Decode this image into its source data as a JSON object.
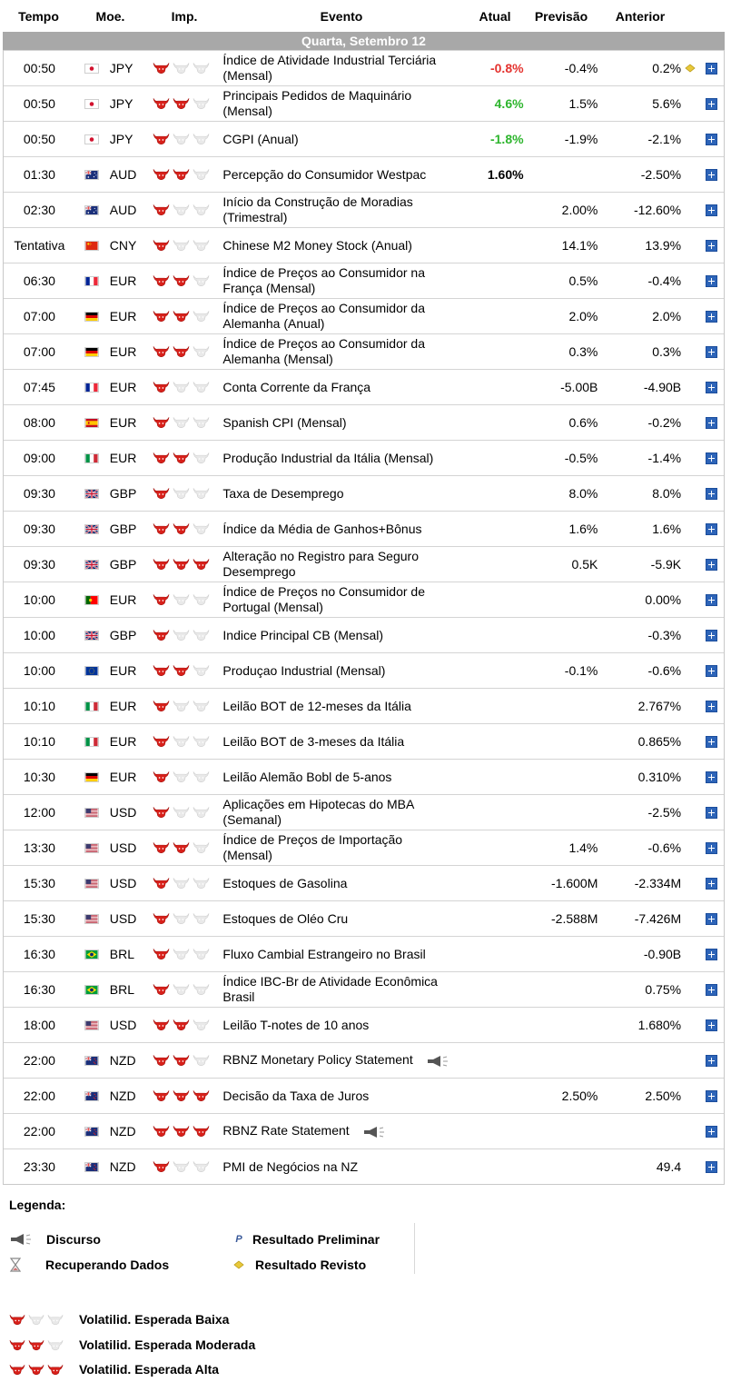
{
  "header": {
    "time": "Tempo",
    "currency": "Moe.",
    "importance": "Imp.",
    "event": "Evento",
    "actual": "Atual",
    "forecast": "Previsão",
    "previous": "Anterior"
  },
  "day_label": "Quarta, Setembro 12",
  "colors": {
    "bull_on": "#d8201a",
    "bull_off": "#e9e9e9",
    "negative": "#e4332f",
    "positive": "#2eb52e"
  },
  "events": [
    {
      "time": "00:50",
      "flag": "jp",
      "currency": "JPY",
      "imp": 1,
      "event": [
        "Índice de Atividade Industrial Terciária",
        "(Mensal)"
      ],
      "actual": "-0.8%",
      "actual_class": "neg",
      "forecast": "-0.4%",
      "previous": "0.2%",
      "revised": true,
      "speech": false
    },
    {
      "time": "00:50",
      "flag": "jp",
      "currency": "JPY",
      "imp": 2,
      "event": [
        "Principais Pedidos de Maquinário",
        "(Mensal)"
      ],
      "actual": "4.6%",
      "actual_class": "pos",
      "forecast": "1.5%",
      "previous": "5.6%",
      "revised": false,
      "speech": false
    },
    {
      "time": "00:50",
      "flag": "jp",
      "currency": "JPY",
      "imp": 1,
      "event": [
        "CGPI (Anual)"
      ],
      "actual": "-1.8%",
      "actual_class": "pos",
      "forecast": "-1.9%",
      "previous": "-2.1%",
      "revised": false,
      "speech": false
    },
    {
      "time": "01:30",
      "flag": "au",
      "currency": "AUD",
      "imp": 2,
      "event": [
        "Percepção do Consumidor Westpac"
      ],
      "actual": "1.60%",
      "actual_class": "neu",
      "forecast": "",
      "previous": "-2.50%",
      "revised": false,
      "speech": false
    },
    {
      "time": "02:30",
      "flag": "au",
      "currency": "AUD",
      "imp": 1,
      "event": [
        "Início da Construção de Moradias",
        "(Trimestral)"
      ],
      "actual": "",
      "actual_class": "",
      "forecast": "2.00%",
      "previous": "-12.60%",
      "revised": false,
      "speech": false
    },
    {
      "time": "Tentativa",
      "flag": "cn",
      "currency": "CNY",
      "imp": 1,
      "event": [
        "Chinese M2 Money Stock (Anual)"
      ],
      "actual": "",
      "actual_class": "",
      "forecast": "14.1%",
      "previous": "13.9%",
      "revised": false,
      "speech": false
    },
    {
      "time": "06:30",
      "flag": "fr",
      "currency": "EUR",
      "imp": 2,
      "event": [
        "Índice de Preços ao Consumidor na",
        "França (Mensal)"
      ],
      "actual": "",
      "actual_class": "",
      "forecast": "0.5%",
      "previous": "-0.4%",
      "revised": false,
      "speech": false
    },
    {
      "time": "07:00",
      "flag": "de",
      "currency": "EUR",
      "imp": 2,
      "event": [
        "Índice de Preços ao Consumidor da",
        "Alemanha (Anual)"
      ],
      "actual": "",
      "actual_class": "",
      "forecast": "2.0%",
      "previous": "2.0%",
      "revised": false,
      "speech": false
    },
    {
      "time": "07:00",
      "flag": "de",
      "currency": "EUR",
      "imp": 2,
      "event": [
        "Índice de Preços ao Consumidor da",
        "Alemanha (Mensal)"
      ],
      "actual": "",
      "actual_class": "",
      "forecast": "0.3%",
      "previous": "0.3%",
      "revised": false,
      "speech": false
    },
    {
      "time": "07:45",
      "flag": "fr",
      "currency": "EUR",
      "imp": 1,
      "event": [
        "Conta Corrente da França"
      ],
      "actual": "",
      "actual_class": "",
      "forecast": "-5.00B",
      "previous": "-4.90B",
      "revised": false,
      "speech": false
    },
    {
      "time": "08:00",
      "flag": "es",
      "currency": "EUR",
      "imp": 1,
      "event": [
        "Spanish CPI (Mensal)"
      ],
      "actual": "",
      "actual_class": "",
      "forecast": "0.6%",
      "previous": "-0.2%",
      "revised": false,
      "speech": false
    },
    {
      "time": "09:00",
      "flag": "it",
      "currency": "EUR",
      "imp": 2,
      "event": [
        "Produção Industrial da Itália (Mensal)"
      ],
      "actual": "",
      "actual_class": "",
      "forecast": "-0.5%",
      "previous": "-1.4%",
      "revised": false,
      "speech": false
    },
    {
      "time": "09:30",
      "flag": "gb",
      "currency": "GBP",
      "imp": 1,
      "event": [
        "Taxa de Desemprego"
      ],
      "actual": "",
      "actual_class": "",
      "forecast": "8.0%",
      "previous": "8.0%",
      "revised": false,
      "speech": false
    },
    {
      "time": "09:30",
      "flag": "gb",
      "currency": "GBP",
      "imp": 2,
      "event": [
        "Índice da Média de Ganhos+Bônus"
      ],
      "actual": "",
      "actual_class": "",
      "forecast": "1.6%",
      "previous": "1.6%",
      "revised": false,
      "speech": false
    },
    {
      "time": "09:30",
      "flag": "gb",
      "currency": "GBP",
      "imp": 3,
      "event": [
        "Alteração no Registro para Seguro",
        "Desemprego"
      ],
      "actual": "",
      "actual_class": "",
      "forecast": "0.5K",
      "previous": "-5.9K",
      "revised": false,
      "speech": false
    },
    {
      "time": "10:00",
      "flag": "pt",
      "currency": "EUR",
      "imp": 1,
      "event": [
        "Índice de Preços no Consumidor de",
        "Portugal (Mensal)"
      ],
      "actual": "",
      "actual_class": "",
      "forecast": "",
      "previous": "0.00%",
      "revised": false,
      "speech": false
    },
    {
      "time": "10:00",
      "flag": "gb",
      "currency": "GBP",
      "imp": 1,
      "event": [
        "Indice Principal CB (Mensal)"
      ],
      "actual": "",
      "actual_class": "",
      "forecast": "",
      "previous": "-0.3%",
      "revised": false,
      "speech": false
    },
    {
      "time": "10:00",
      "flag": "eu",
      "currency": "EUR",
      "imp": 2,
      "event": [
        "Produçao Industrial (Mensal)"
      ],
      "actual": "",
      "actual_class": "",
      "forecast": "-0.1%",
      "previous": "-0.6%",
      "revised": false,
      "speech": false
    },
    {
      "time": "10:10",
      "flag": "it",
      "currency": "EUR",
      "imp": 1,
      "event": [
        "Leilão BOT de 12-meses da Itália"
      ],
      "actual": "",
      "actual_class": "",
      "forecast": "",
      "previous": "2.767%",
      "revised": false,
      "speech": false
    },
    {
      "time": "10:10",
      "flag": "it",
      "currency": "EUR",
      "imp": 1,
      "event": [
        "Leilão BOT de 3-meses da Itália"
      ],
      "actual": "",
      "actual_class": "",
      "forecast": "",
      "previous": "0.865%",
      "revised": false,
      "speech": false
    },
    {
      "time": "10:30",
      "flag": "de",
      "currency": "EUR",
      "imp": 1,
      "event": [
        "Leilão Alemão Bobl de 5-anos"
      ],
      "actual": "",
      "actual_class": "",
      "forecast": "",
      "previous": "0.310%",
      "revised": false,
      "speech": false
    },
    {
      "time": "12:00",
      "flag": "us",
      "currency": "USD",
      "imp": 1,
      "event": [
        "Aplicações em Hipotecas do MBA",
        "(Semanal)"
      ],
      "actual": "",
      "actual_class": "",
      "forecast": "",
      "previous": "-2.5%",
      "revised": false,
      "speech": false
    },
    {
      "time": "13:30",
      "flag": "us",
      "currency": "USD",
      "imp": 2,
      "event": [
        "Índice de Preços de Importação",
        "(Mensal)"
      ],
      "actual": "",
      "actual_class": "",
      "forecast": "1.4%",
      "previous": "-0.6%",
      "revised": false,
      "speech": false
    },
    {
      "time": "15:30",
      "flag": "us",
      "currency": "USD",
      "imp": 1,
      "event": [
        "Estoques de Gasolina"
      ],
      "actual": "",
      "actual_class": "",
      "forecast": "-1.600M",
      "previous": "-2.334M",
      "revised": false,
      "speech": false
    },
    {
      "time": "15:30",
      "flag": "us",
      "currency": "USD",
      "imp": 1,
      "event": [
        "Estoques de Oléo Cru"
      ],
      "actual": "",
      "actual_class": "",
      "forecast": "-2.588M",
      "previous": "-7.426M",
      "revised": false,
      "speech": false
    },
    {
      "time": "16:30",
      "flag": "br",
      "currency": "BRL",
      "imp": 1,
      "event": [
        "Fluxo Cambial Estrangeiro no Brasil"
      ],
      "actual": "",
      "actual_class": "",
      "forecast": "",
      "previous": "-0.90B",
      "revised": false,
      "speech": false
    },
    {
      "time": "16:30",
      "flag": "br",
      "currency": "BRL",
      "imp": 1,
      "event": [
        "Índice IBC-Br de Atividade Econômica",
        "Brasil"
      ],
      "actual": "",
      "actual_class": "",
      "forecast": "",
      "previous": "0.75%",
      "revised": false,
      "speech": false
    },
    {
      "time": "18:00",
      "flag": "us",
      "currency": "USD",
      "imp": 2,
      "event": [
        "Leilão T-notes de 10 anos"
      ],
      "actual": "",
      "actual_class": "",
      "forecast": "",
      "previous": "1.680%",
      "revised": false,
      "speech": false
    },
    {
      "time": "22:00",
      "flag": "nz",
      "currency": "NZD",
      "imp": 2,
      "event": [
        "RBNZ Monetary Policy Statement"
      ],
      "actual": "",
      "actual_class": "",
      "forecast": "",
      "previous": "",
      "revised": false,
      "speech": true
    },
    {
      "time": "22:00",
      "flag": "nz",
      "currency": "NZD",
      "imp": 3,
      "event": [
        "Decisão da Taxa de Juros"
      ],
      "actual": "",
      "actual_class": "",
      "forecast": "2.50%",
      "previous": "2.50%",
      "revised": false,
      "speech": false
    },
    {
      "time": "22:00",
      "flag": "nz",
      "currency": "NZD",
      "imp": 3,
      "event": [
        "RBNZ Rate Statement"
      ],
      "actual": "",
      "actual_class": "",
      "forecast": "",
      "previous": "",
      "revised": false,
      "speech": true
    },
    {
      "time": "23:30",
      "flag": "nz",
      "currency": "NZD",
      "imp": 1,
      "event": [
        "PMI de Negócios na NZ"
      ],
      "actual": "",
      "actual_class": "",
      "forecast": "",
      "previous": "49.4",
      "revised": false,
      "speech": false
    }
  ],
  "legend": {
    "title": "Legenda:",
    "speech": "Discurso",
    "preliminary": "Resultado Preliminar",
    "preliminary_mark": "P",
    "loading": "Recuperando Dados",
    "revised": "Resultado Revisto",
    "vol_low": "Volatilid. Esperada Baixa",
    "vol_mod": "Volatilid. Esperada Moderada",
    "vol_high": "Volatilid. Esperada Alta"
  }
}
